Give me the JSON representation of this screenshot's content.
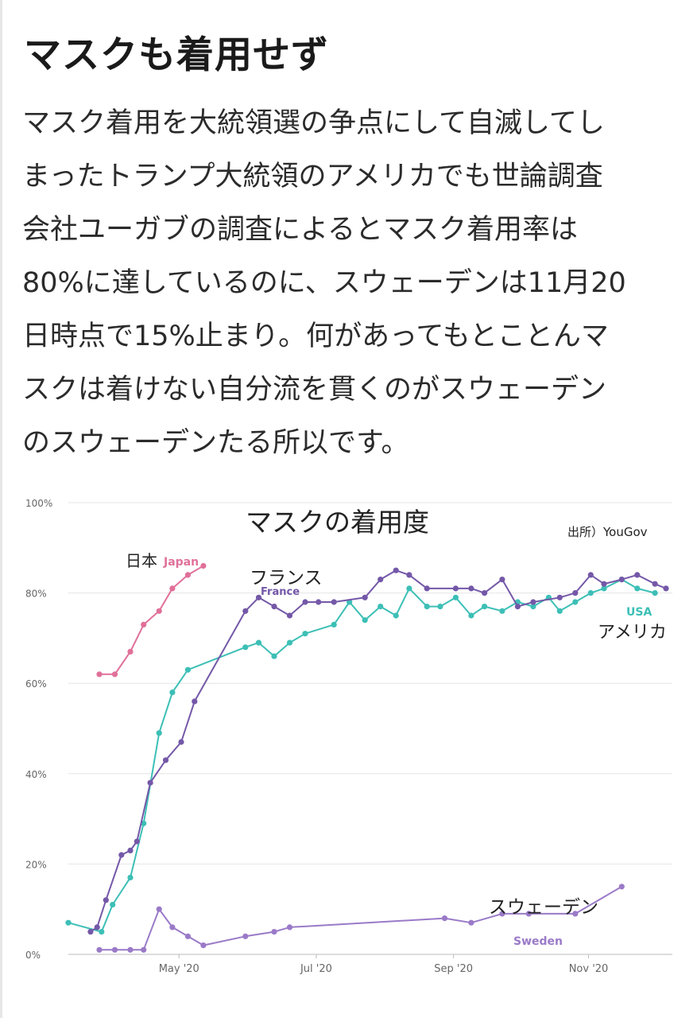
{
  "article": {
    "heading": "マスクも着用せず",
    "paragraph_lines": [
      "マスク着用を大統領選の争点にして自滅してし",
      "まったトランプ大統領のアメリカでも世論調査",
      "会社ユーガブの調査によるとマスク着用率は",
      "80%に達しているのに、スウェーデンは11月20",
      "日時点で15%止まり。何があってもとことんマ",
      "スクは着けない自分流を貫くのがスウェーデン",
      "のスウェーデンたる所以です。"
    ]
  },
  "chart_data": {
    "type": "line",
    "title": "マスクの着用度",
    "source": "出所）YouGov",
    "xlabel": "",
    "ylabel": "",
    "ylim": [
      0,
      100
    ],
    "y_ticks": [
      "0%",
      "20%",
      "40%",
      "60%",
      "80%",
      "100%"
    ],
    "x_ticks": [
      {
        "label": "May '20",
        "x": 120
      },
      {
        "label": "Jul '20",
        "x": 182
      },
      {
        "label": "Sep '20",
        "x": 244
      },
      {
        "label": "Nov '20",
        "x": 305
      }
    ],
    "xlim": [
      70,
      340
    ],
    "series": [
      {
        "name": "Japan",
        "label_ja": "日本",
        "label_en": "Japan",
        "color": "#e0709a",
        "points": [
          [
            84,
            62
          ],
          [
            91,
            62
          ],
          [
            98,
            67
          ],
          [
            104,
            73
          ],
          [
            111,
            76
          ],
          [
            117,
            81
          ],
          [
            124,
            84
          ],
          [
            131,
            86
          ]
        ]
      },
      {
        "name": "France",
        "label_ja": "フランス",
        "label_en": "France",
        "color": "#7458a8",
        "points": [
          [
            80,
            5
          ],
          [
            83,
            6
          ],
          [
            87,
            12
          ],
          [
            94,
            22
          ],
          [
            98,
            23
          ],
          [
            101,
            25
          ],
          [
            107,
            38
          ],
          [
            114,
            43
          ],
          [
            121,
            47
          ],
          [
            127,
            56
          ],
          [
            150,
            76
          ],
          [
            156,
            79
          ],
          [
            163,
            77
          ],
          [
            170,
            75
          ],
          [
            177,
            78
          ],
          [
            183,
            78
          ],
          [
            190,
            78
          ],
          [
            204,
            79
          ],
          [
            211,
            83
          ],
          [
            218,
            85
          ],
          [
            224,
            84
          ],
          [
            232,
            81
          ],
          [
            245,
            81
          ],
          [
            252,
            81
          ],
          [
            258,
            80
          ],
          [
            266,
            83
          ],
          [
            273,
            77
          ],
          [
            280,
            78
          ],
          [
            292,
            79
          ],
          [
            299,
            80
          ],
          [
            306,
            84
          ],
          [
            312,
            82
          ],
          [
            320,
            83
          ],
          [
            327,
            84
          ],
          [
            335,
            82
          ],
          [
            340,
            81
          ]
        ]
      },
      {
        "name": "USA",
        "label_ja": "アメリカ",
        "label_en": "USA",
        "color": "#3cbfb6",
        "points": [
          [
            70,
            7
          ],
          [
            85,
            5
          ],
          [
            90,
            11
          ],
          [
            98,
            17
          ],
          [
            104,
            29
          ],
          [
            111,
            49
          ],
          [
            117,
            58
          ],
          [
            124,
            63
          ],
          [
            150,
            68
          ],
          [
            156,
            69
          ],
          [
            163,
            66
          ],
          [
            170,
            69
          ],
          [
            177,
            71
          ],
          [
            190,
            73
          ],
          [
            197,
            78
          ],
          [
            204,
            74
          ],
          [
            211,
            77
          ],
          [
            218,
            75
          ],
          [
            224,
            81
          ],
          [
            232,
            77
          ],
          [
            238,
            77
          ],
          [
            245,
            79
          ],
          [
            252,
            75
          ],
          [
            258,
            77
          ],
          [
            266,
            76
          ],
          [
            273,
            78
          ],
          [
            280,
            77
          ],
          [
            287,
            79
          ],
          [
            292,
            76
          ],
          [
            299,
            78
          ],
          [
            306,
            80
          ],
          [
            312,
            81
          ],
          [
            320,
            83
          ],
          [
            327,
            81
          ],
          [
            335,
            80
          ]
        ]
      },
      {
        "name": "Sweden",
        "label_ja": "スウェーデン",
        "label_en": "Sweden",
        "color": "#9a7ac8",
        "points": [
          [
            84,
            1
          ],
          [
            91,
            1
          ],
          [
            98,
            1
          ],
          [
            104,
            1
          ],
          [
            111,
            10
          ],
          [
            117,
            6
          ],
          [
            124,
            4
          ],
          [
            131,
            2
          ],
          [
            150,
            4
          ],
          [
            163,
            5
          ],
          [
            170,
            6
          ],
          [
            240,
            8
          ],
          [
            252,
            7
          ],
          [
            266,
            9
          ],
          [
            278,
            9
          ],
          [
            299,
            9
          ],
          [
            320,
            15
          ]
        ]
      }
    ]
  }
}
